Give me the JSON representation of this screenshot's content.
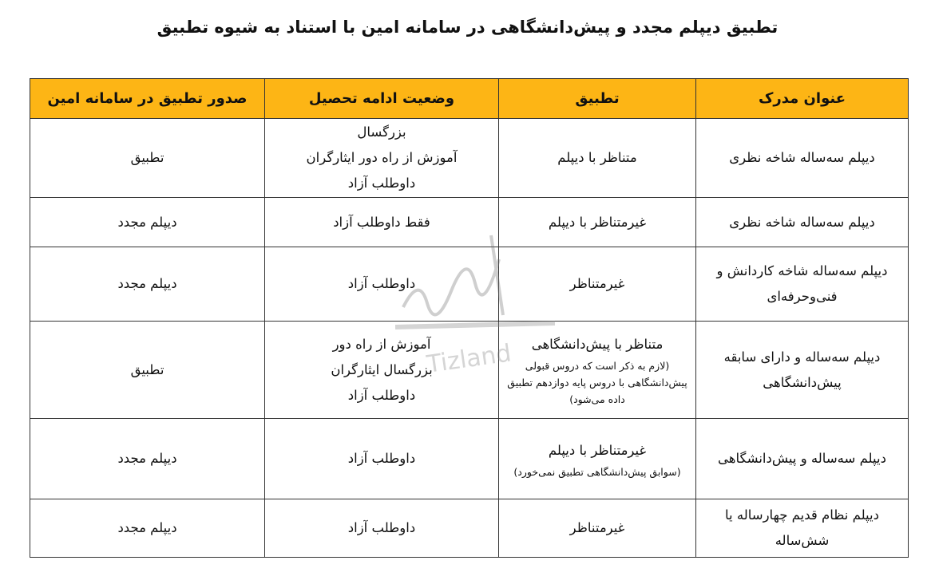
{
  "title": "تطبیق دیپلم مجدد و پیش‌دانشگاهی در سامانه امین با استناد به شیوه تطبیق",
  "table": {
    "headers": [
      "عنوان مدرک",
      "تطبیق",
      "وضعیت ادامه تحصیل",
      "صدور تطبیق در سامانه امین"
    ],
    "rows": [
      {
        "degree": "دیپلم سه‌ساله شاخه نظری",
        "match": "متناظر با دیپلم",
        "match_note": "",
        "status": [
          "بزرگسال",
          "آموزش از راه دور ایثارگران",
          "داوطلب آزاد"
        ],
        "issue": "تطبیق"
      },
      {
        "degree": "دیپلم سه‌ساله شاخه نظری",
        "match": "غیرمتناظر با دیپلم",
        "match_note": "",
        "status": [
          "فقط داوطلب آزاد"
        ],
        "issue": "دیپلم مجدد"
      },
      {
        "degree": "دیپلم سه‌ساله شاخه کاردانش و فنی‌وحرفه‌ای",
        "match": "غیرمتناظر",
        "match_note": "",
        "status": [
          "داوطلب آزاد"
        ],
        "issue": "دیپلم مجدد"
      },
      {
        "degree": "دیپلم سه‌ساله و دارای سابقه پیش‌دانشگاهی",
        "match": "متناظر با پیش‌دانشگاهی",
        "match_note": "(لازم به ذکر است که دروس قبولی پیش‌دانشگاهی با دروس پایه دوازدهم تطبیق داده می‌شود)",
        "status": [
          "آموزش از راه دور",
          "بزرگسال ایثارگران",
          "داوطلب آزاد"
        ],
        "issue": "تطبیق"
      },
      {
        "degree": "دیپلم سه‌ساله و پیش‌دانشگاهی",
        "match": "غیرمتناظر با دیپلم",
        "match_note": "(سوابق پیش‌دانشگاهی تطبیق نمی‌خورد)",
        "status": [
          "داوطلب آزاد"
        ],
        "issue": "دیپلم مجدد"
      },
      {
        "degree": "دیپلم نظام قدیم چهارساله یا شش‌ساله",
        "match": "غیرمتناظر",
        "match_note": "",
        "status": [
          "داوطلب آزاد"
        ],
        "issue": "دیپلم مجدد"
      }
    ]
  },
  "watermark": "Tizland",
  "colors": {
    "header_bg": "#fdb515"
  }
}
